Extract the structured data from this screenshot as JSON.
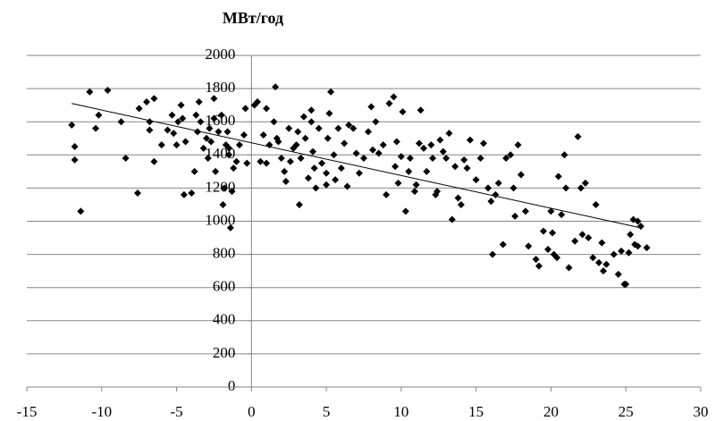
{
  "chart_data": {
    "type": "scatter",
    "title": "МВт/год",
    "xlim": [
      -15,
      30
    ],
    "xticks": [
      -15,
      -10,
      -5,
      0,
      5,
      10,
      15,
      20,
      25,
      30
    ],
    "ylim": [
      0,
      2000
    ],
    "yticks": [
      0,
      200,
      400,
      600,
      800,
      1000,
      1200,
      1400,
      1600,
      1800,
      2000
    ],
    "grid": true,
    "color": "#000000",
    "x": [
      -12,
      -11.8,
      -11.8,
      -11.4,
      -10.8,
      -10.4,
      -10.2,
      -9.6,
      -8.7,
      -8.4,
      -7.6,
      -7.5,
      -7,
      -6.8,
      -6.8,
      -6.5,
      -6.5,
      -6,
      -5.6,
      -5.3,
      -5.2,
      -5,
      -4.9,
      -4.7,
      -4.6,
      -4.5,
      -4.4,
      -4,
      -3.8,
      -3.7,
      -3.6,
      -3.5,
      -3.4,
      -3.2,
      -3,
      -2.9,
      -2.8,
      -2.7,
      -2.5,
      -2.5,
      -2.4,
      -2.2,
      -2,
      -1.9,
      -1.8,
      -1.7,
      -1.6,
      -1.5,
      -1.5,
      -1.4,
      -1.3,
      -1.2,
      -1,
      -0.8,
      -0.5,
      -0.4,
      -0.3,
      0.2,
      0.4,
      0.6,
      0.8,
      1,
      1,
      1.2,
      1.5,
      1.6,
      1.7,
      1.8,
      2,
      2.2,
      2.3,
      2.5,
      2.6,
      2.8,
      3,
      3.1,
      3.2,
      3.3,
      3.5,
      3.6,
      3.8,
      4,
      4,
      4.1,
      4.2,
      4.3,
      4.5,
      4.7,
      5,
      5,
      5.1,
      5.2,
      5.3,
      5.5,
      5.6,
      5.8,
      6,
      6.2,
      6.4,
      6.5,
      6.8,
      7,
      7.2,
      7.5,
      7.8,
      8,
      8.1,
      8.3,
      8.5,
      8.8,
      9,
      9.2,
      9.5,
      9.6,
      9.7,
      9.8,
      10,
      10.1,
      10.3,
      10.5,
      10.6,
      10.9,
      11,
      11.2,
      11.3,
      11.5,
      11.7,
      12,
      12.1,
      12.3,
      12.4,
      12.6,
      12.8,
      13,
      13.2,
      13.4,
      13.6,
      13.8,
      14,
      14.2,
      14.4,
      14.6,
      15,
      15.3,
      15.5,
      15.8,
      16,
      16.1,
      16.3,
      16.5,
      16.8,
      17,
      17.3,
      17.5,
      17.6,
      17.8,
      18,
      18.3,
      18.5,
      19,
      19.2,
      19.5,
      19.8,
      20,
      20.1,
      20.2,
      20.4,
      20.5,
      20.7,
      20.9,
      21,
      21.2,
      21.6,
      21.8,
      22,
      22.1,
      22.3,
      22.5,
      22.8,
      23,
      23.2,
      23.4,
      23.5,
      23.7,
      24.2,
      24.5,
      24.7,
      24.9,
      25,
      25.2,
      25.5,
      25.6,
      25.8,
      25.8,
      26,
      26.4,
      25.3
    ],
    "values": [
      1580,
      1450,
      1370,
      1060,
      1780,
      1560,
      1640,
      1790,
      1600,
      1380,
      1170,
      1680,
      1720,
      1600,
      1550,
      1740,
      1360,
      1460,
      1550,
      1640,
      1530,
      1460,
      1600,
      1700,
      1620,
      1160,
      1480,
      1170,
      1300,
      1640,
      1540,
      1720,
      1600,
      1440,
      1500,
      1380,
      1560,
      1480,
      1740,
      1620,
      1300,
      1540,
      1640,
      1100,
      1200,
      1460,
      1540,
      1440,
      1400,
      960,
      1180,
      1320,
      1360,
      1460,
      1520,
      1680,
      1350,
      1700,
      1720,
      1360,
      1520,
      1350,
      1680,
      1460,
      1600,
      1810,
      1500,
      1480,
      1380,
      1300,
      1240,
      1560,
      1360,
      1440,
      1460,
      1540,
      1100,
      1380,
      1630,
      1500,
      1260,
      1670,
      1600,
      1420,
      1320,
      1200,
      1560,
      1350,
      1290,
      1220,
      1500,
      1650,
      1780,
      1400,
      1250,
      1560,
      1320,
      1470,
      1210,
      1580,
      1560,
      1410,
      1290,
      1380,
      1540,
      1690,
      1430,
      1600,
      1410,
      1460,
      1160,
      1710,
      1750,
      1330,
      1480,
      1230,
      1390,
      1660,
      1060,
      1300,
      1380,
      1180,
      1220,
      1470,
      1670,
      1440,
      1300,
      1460,
      1380,
      1160,
      1180,
      1490,
      1420,
      1380,
      1530,
      1010,
      1330,
      1140,
      1100,
      1370,
      1320,
      1490,
      1250,
      1380,
      1470,
      1200,
      1120,
      800,
      1160,
      1230,
      860,
      1380,
      1400,
      1200,
      1030,
      1460,
      1280,
      1060,
      850,
      770,
      730,
      940,
      830,
      1060,
      930,
      800,
      780,
      1270,
      1040,
      1400,
      1200,
      720,
      880,
      1510,
      1200,
      920,
      1230,
      900,
      780,
      1100,
      750,
      870,
      700,
      740,
      800,
      680,
      820,
      620,
      620,
      810,
      1010,
      860,
      1000,
      850,
      970,
      840,
      920
    ],
    "trendline": {
      "x": [
        -12,
        26
      ],
      "y": [
        1710,
        960
      ]
    }
  }
}
